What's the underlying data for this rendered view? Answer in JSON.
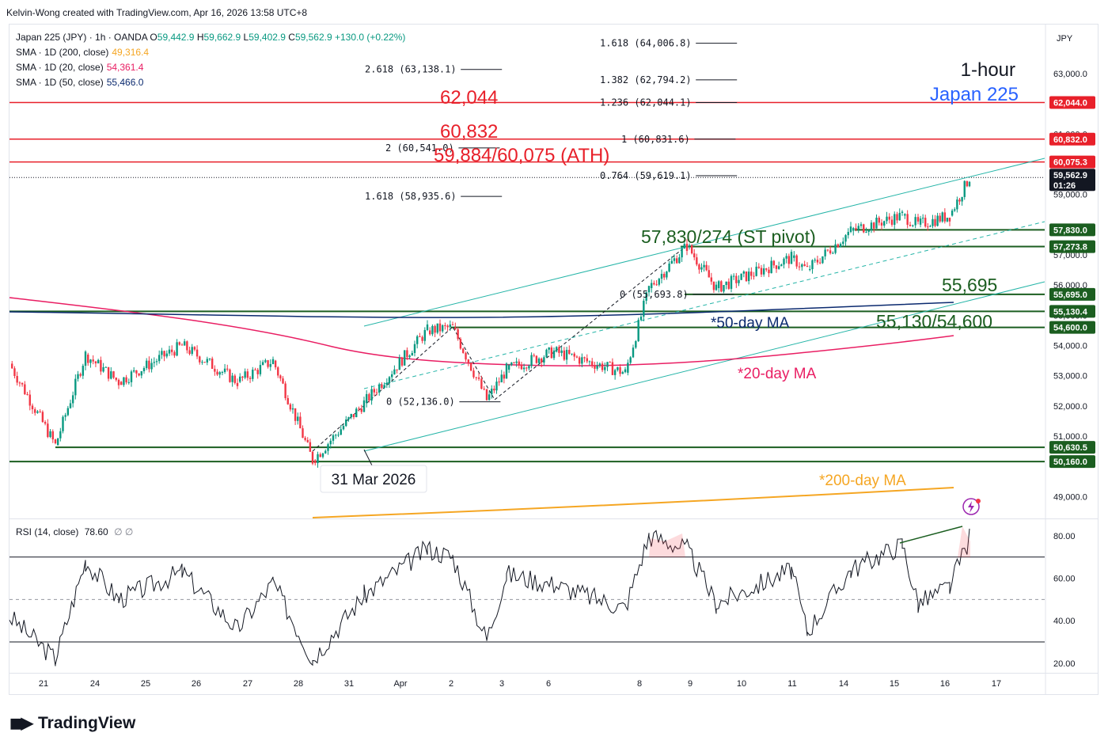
{
  "credit": "Kelvin-Wong created with TradingView.com, Apr 16, 2026 13:58 UTC+8",
  "header": {
    "symbol": "Japan 225 (JPY) · 1h · OANDA",
    "ohlc": [
      {
        "k": "O",
        "v": "59,442.9"
      },
      {
        "k": "H",
        "v": "59,662.9"
      },
      {
        "k": "L",
        "v": "59,402.9"
      },
      {
        "k": "C",
        "v": "59,562.9"
      }
    ],
    "change": "+130.0 (+0.22%)",
    "sma": [
      {
        "label": "SMA · 1D (200, close)",
        "value": "49,316.4",
        "color": "#f5a623"
      },
      {
        "label": "SMA · 1D (20, close)",
        "value": "54,361.4",
        "color": "#e91e63"
      },
      {
        "label": "SMA · 1D (50, close)",
        "value": "55,466.0",
        "color": "#0b2a6f"
      }
    ]
  },
  "currency": "JPY",
  "title_lines": [
    "1-hour",
    "Japan 225"
  ],
  "colors": {
    "up": "#089981",
    "down": "#f23645",
    "resistance": "#e8202a",
    "support": "#1b5e20",
    "channel": "#26b5a8",
    "sma20": "#e91e63",
    "sma50": "#0b2a6f",
    "sma200": "#f5a623",
    "rsi": "#131722"
  },
  "annotations": {
    "r1": "62,044",
    "r2": "60,832",
    "r3": "59,884/60,075 (ATH)",
    "pivot": "57,830/274 (ST pivot)",
    "s1": "55,695",
    "s2": "55,130/54,600",
    "ma50": "*50-day MA",
    "ma20": "*20-day MA",
    "ma200": "*200-day MA",
    "date_callout": "31 Mar 2026"
  },
  "fib_labels": [
    {
      "text": "1.618 (64,006.8)",
      "price": 64006.8
    },
    {
      "text": "2.618 (63,138.1)",
      "price": 63138.1
    },
    {
      "text": "1.382 (62,794.2)",
      "price": 62794.2
    },
    {
      "text": "1.236 (62,044.1)",
      "price": 62044.1
    },
    {
      "text": "1 (60,831.6)",
      "price": 60831.6
    },
    {
      "text": "2 (60,541.0)",
      "price": 60541.0
    },
    {
      "text": "0.764 (59,619.1)",
      "price": 59619.1
    },
    {
      "text": "1.618 (58,935.6)",
      "price": 58935.6
    },
    {
      "text": "0 (55,693.8)",
      "price": 55693.8
    },
    {
      "text": "0 (52,136.0)",
      "price": 52136.0
    }
  ],
  "price_badges": [
    {
      "text": "62,044.0",
      "price": 62044,
      "color": "#e8202a"
    },
    {
      "text": "60,832.0",
      "price": 60832,
      "color": "#e8202a"
    },
    {
      "text": "60,075.3",
      "price": 60075.3,
      "color": "#e8202a"
    },
    {
      "text": "59,562.9",
      "sub": "01:26",
      "price": 59562.9,
      "color": "#131722"
    },
    {
      "text": "57,830.0",
      "price": 57830,
      "color": "#1b5e20"
    },
    {
      "text": "57,273.8",
      "price": 57273.8,
      "color": "#1b5e20"
    },
    {
      "text": "55,695.0",
      "price": 55695,
      "color": "#1b5e20"
    },
    {
      "text": "55,130.4",
      "price": 55130.4,
      "color": "#1b5e20"
    },
    {
      "text": "54,600.0",
      "price": 54600,
      "color": "#1b5e20"
    },
    {
      "text": "50,630.5",
      "price": 50630.5,
      "color": "#1b5e20"
    },
    {
      "text": "50,160.0",
      "price": 50160,
      "color": "#1b5e20"
    }
  ],
  "rsi": {
    "label": "RSI (14, close)",
    "value": "78.60",
    "extra": "∅ ∅",
    "ticks": [
      "80.00",
      "60.00",
      "40.00",
      "20.00"
    ]
  },
  "chart_data": {
    "type": "candlestick",
    "timeframe": "1h",
    "price_axis_ticks": [
      "63,000.0",
      "61,000.0",
      "59,000.0",
      "57,000.0",
      "56,000.0",
      "55,000.0",
      "54,000.0",
      "53,000.0",
      "52,000.0",
      "51,000.0",
      "49,000.0"
    ],
    "price_axis_values": [
      63000,
      61000,
      59000,
      57000,
      56000,
      55000,
      54000,
      53000,
      52000,
      51000,
      49000
    ],
    "x_ticks": [
      "21",
      "24",
      "25",
      "26",
      "27",
      "28",
      "31",
      "Apr",
      "2",
      "3",
      "6",
      "8",
      "9",
      "10",
      "11",
      "14",
      "15",
      "16",
      "17"
    ],
    "resistance_levels": [
      62044,
      60832,
      60075
    ],
    "support_levels": [
      57830,
      57274,
      55695,
      55130,
      54600,
      50630,
      50160
    ],
    "price_path": [
      {
        "t": "Mar 20",
        "p": 53400
      },
      {
        "t": "Mar 23",
        "p": 50700
      },
      {
        "t": "Mar 24",
        "p": 53700
      },
      {
        "t": "Mar 25",
        "p": 52800
      },
      {
        "t": "Mar 26",
        "p": 54000
      },
      {
        "t": "Mar 27",
        "p": 52800
      },
      {
        "t": "Mar 28",
        "p": 53500
      },
      {
        "t": "Mar 30",
        "p": 50200
      },
      {
        "t": "Mar 31",
        "p": 52100
      },
      {
        "t": "Apr 1",
        "p": 54500
      },
      {
        "t": "Apr 2",
        "p": 54600
      },
      {
        "t": "Apr 3",
        "p": 52200
      },
      {
        "t": "Apr 3 b",
        "p": 53200
      },
      {
        "t": "Apr 6",
        "p": 53800
      },
      {
        "t": "Apr 7",
        "p": 53100
      },
      {
        "t": "Apr 8",
        "p": 55900
      },
      {
        "t": "Apr 9",
        "p": 57300
      },
      {
        "t": "Apr 10",
        "p": 55900
      },
      {
        "t": "Apr 10 b",
        "p": 56900
      },
      {
        "t": "Apr 13",
        "p": 56500
      },
      {
        "t": "Apr 14",
        "p": 57800
      },
      {
        "t": "Apr 15",
        "p": 58300
      },
      {
        "t": "Apr 15 b",
        "p": 58000
      },
      {
        "t": "Apr 16",
        "p": 58300
      },
      {
        "t": "Apr 16 b",
        "p": 59563
      }
    ],
    "rsi_path": [
      {
        "t": "Mar 20",
        "v": 42
      },
      {
        "t": "Mar 23",
        "v": 22
      },
      {
        "t": "Mar 24",
        "v": 68
      },
      {
        "t": "Mar 25",
        "v": 50
      },
      {
        "t": "Mar 26",
        "v": 63
      },
      {
        "t": "Mar 27",
        "v": 36
      },
      {
        "t": "Mar 28",
        "v": 58
      },
      {
        "t": "Mar 30",
        "v": 22
      },
      {
        "t": "Mar 31",
        "v": 52
      },
      {
        "t": "Apr 1",
        "v": 74
      },
      {
        "t": "Apr 2",
        "v": 70
      },
      {
        "t": "Apr 3",
        "v": 31
      },
      {
        "t": "Apr 3 b",
        "v": 62
      },
      {
        "t": "Apr 6",
        "v": 57
      },
      {
        "t": "Apr 7",
        "v": 46
      },
      {
        "t": "Apr 8",
        "v": 80
      },
      {
        "t": "Apr 9",
        "v": 74
      },
      {
        "t": "Apr 10",
        "v": 48
      },
      {
        "t": "Apr 10 b",
        "v": 64
      },
      {
        "t": "Apr 13",
        "v": 35
      },
      {
        "t": "Apr 14",
        "v": 64
      },
      {
        "t": "Apr 15",
        "v": 76
      },
      {
        "t": "Apr 15 b",
        "v": 48
      },
      {
        "t": "Apr 16",
        "v": 56
      },
      {
        "t": "Apr 16 b",
        "v": 79
      }
    ]
  }
}
